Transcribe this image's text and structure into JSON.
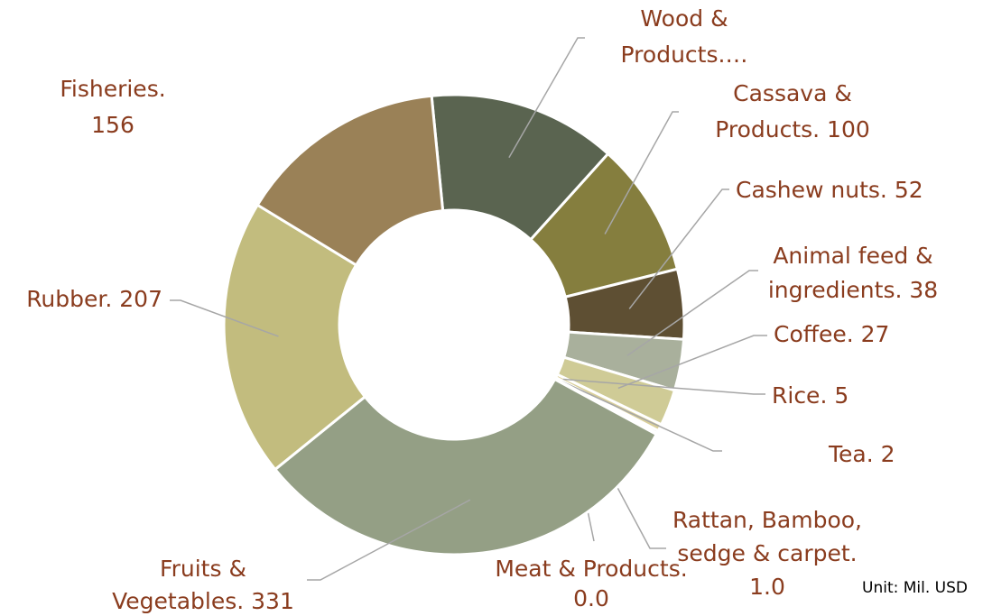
{
  "chart_data": {
    "type": "donut",
    "labels": [
      [
        "Wood &",
        "Products.…"
      ],
      [
        "Cassava &",
        "Products.  100"
      ],
      [
        "Cashew nuts.  52"
      ],
      [
        "Animal feed &",
        "ingredients.  38"
      ],
      [
        "Coffee.  27"
      ],
      [
        "Rice.  5"
      ],
      [
        "Tea.  2"
      ],
      [
        "Rattan, Bamboo,",
        "sedge & carpet.",
        "1.0"
      ],
      [
        "Meat & Products.",
        "0.0"
      ],
      [
        "Fruits &",
        "Vegetables.  331"
      ],
      [
        "Rubber.  207"
      ],
      [
        "Fisheries.",
        "156"
      ]
    ],
    "values": [
      140,
      100,
      52,
      38,
      27,
      5,
      2,
      1,
      0,
      331,
      207,
      156
    ],
    "colors": [
      "#5a6450",
      "#857e3e",
      "#5e4f33",
      "#a9b09c",
      "#cfcb96",
      "#d9cf9a",
      "#8a6a4a",
      "#b8a070",
      "#9a8a60",
      "#949f85",
      "#c2bc7e",
      "#9a8157"
    ],
    "note": "Unit: Mil. USD"
  }
}
